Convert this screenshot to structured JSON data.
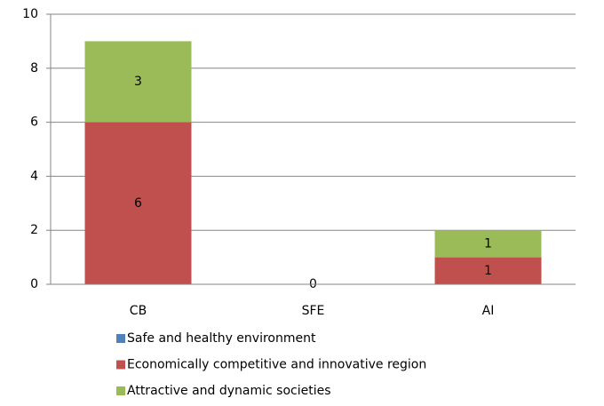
{
  "chart_data": {
    "type": "stacked_bar",
    "categories": [
      "CB",
      "SFE",
      "AI"
    ],
    "series": [
      {
        "name": "Safe and healthy environment",
        "color": "#4f81bd",
        "values": [
          null,
          0,
          null
        ]
      },
      {
        "name": "Economically competitive and innovative region",
        "color": "#c0504d",
        "values": [
          6,
          null,
          1
        ]
      },
      {
        "name": "Attractive and dynamic societies",
        "color": "#9bbb59",
        "values": [
          3,
          null,
          1
        ]
      }
    ],
    "ylim": [
      0,
      10
    ],
    "yticks": [
      0,
      2,
      4,
      6,
      8,
      10
    ],
    "grid": true,
    "legend": "bottom"
  }
}
